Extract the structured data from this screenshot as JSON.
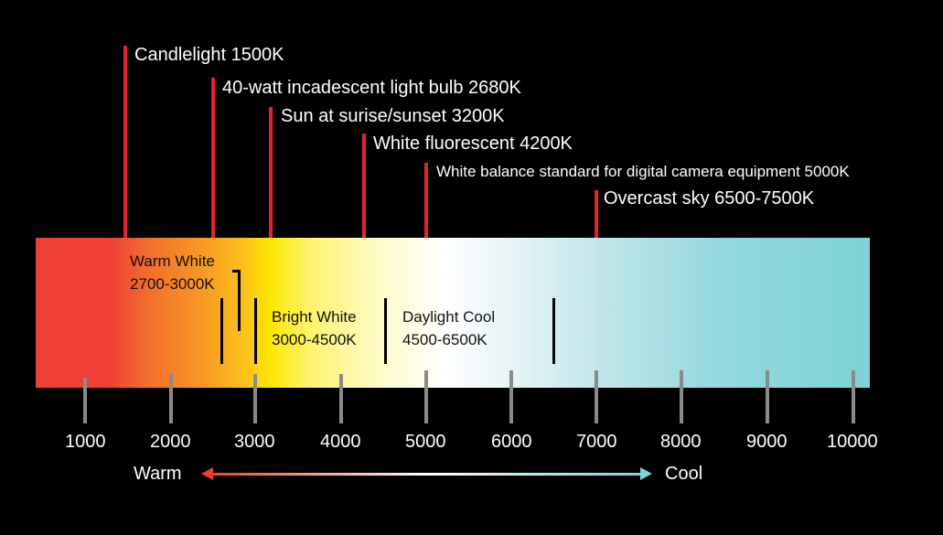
{
  "light_sources": [
    {
      "label": "Candlelight 1500K"
    },
    {
      "label": "40-watt incadescent light bulb 2680K"
    },
    {
      "label": "Sun at surise/sunset 3200K"
    },
    {
      "label": "White fluorescent 4200K"
    },
    {
      "label": "White balance standard for digital camera equipment 5000K"
    },
    {
      "label": "Overcast sky 6500-7500K"
    }
  ],
  "ranges": {
    "warm_white": {
      "name": "Warm White",
      "range": "2700-3000K"
    },
    "bright_white": {
      "name": "Bright White",
      "range": "3000-4500K"
    },
    "daylight_cool": {
      "name": "Daylight Cool",
      "range": "4500-6500K"
    }
  },
  "axis": {
    "ticks": [
      "1000",
      "2000",
      "3000",
      "4000",
      "5000",
      "6000",
      "7000",
      "8000",
      "9000",
      "10000"
    ]
  },
  "scale_arrow": {
    "warm_label": "Warm",
    "cool_label": "Cool"
  },
  "colors": {
    "marker_red": "#e62230",
    "warm_red": "#ef4036",
    "yellow": "#fee600",
    "cool_cyan": "#7ed2d8",
    "tick_gray": "#8a8a8a"
  }
}
